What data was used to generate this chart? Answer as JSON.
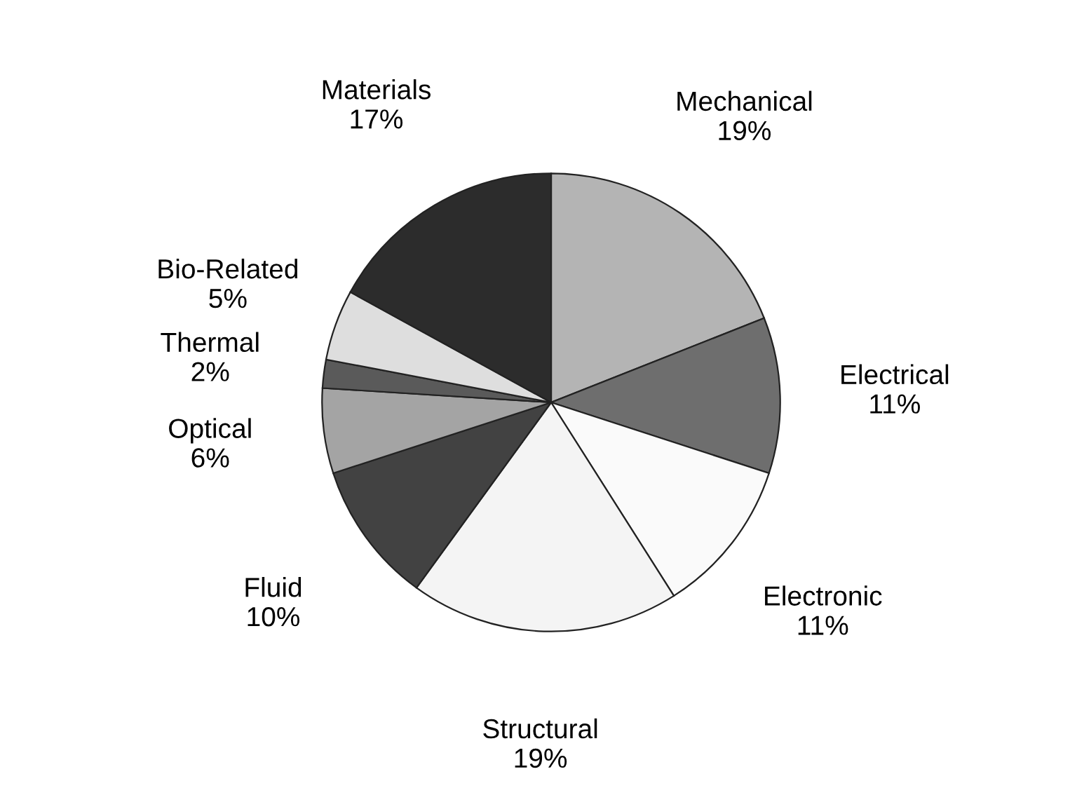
{
  "chart_data": {
    "type": "pie",
    "categories": [
      "Mechanical",
      "Electrical",
      "Electronic",
      "Structural",
      "Fluid",
      "Optical",
      "Thermal",
      "Bio-Related",
      "Materials"
    ],
    "values": [
      19,
      11,
      11,
      19,
      10,
      6,
      2,
      5,
      17
    ],
    "value_labels": [
      "19%",
      "11%",
      "11%",
      "19%",
      "10%",
      "6%",
      "2%",
      "5%",
      "17%"
    ],
    "colors": [
      "#b4b4b4",
      "#6e6e6e",
      "#fafafa",
      "#f4f4f4",
      "#424242",
      "#a4a4a4",
      "#5a5a5a",
      "#dedede",
      "#2c2c2c"
    ]
  }
}
